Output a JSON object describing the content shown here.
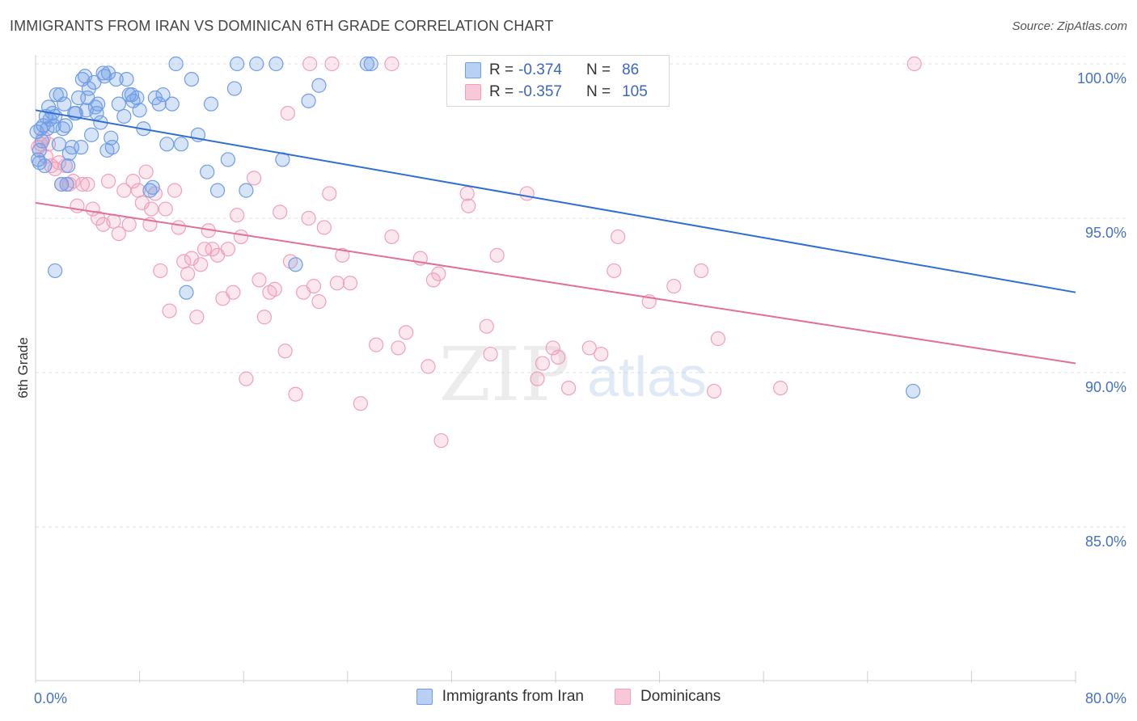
{
  "header": {
    "title": "IMMIGRANTS FROM IRAN VS DOMINICAN 6TH GRADE CORRELATION CHART",
    "source": "Source: ZipAtlas.com"
  },
  "legend": {
    "series": [
      {
        "r_label": "R =",
        "r_value": "-0.374",
        "n_label": "N =",
        "n_value": "86"
      },
      {
        "r_label": "R =",
        "r_value": "-0.357",
        "n_label": "N =",
        "n_value": "105"
      }
    ]
  },
  "watermark": {
    "part1": "ZIP",
    "part2": "atlas"
  },
  "chart_data": {
    "type": "scatter",
    "title": "IMMIGRANTS FROM IRAN VS DOMINICAN 6TH GRADE CORRELATION CHART",
    "xlabel": "",
    "ylabel": "6th Grade",
    "xlim": [
      0,
      80
    ],
    "ylim": [
      80.5,
      101
    ],
    "x_tick_labels": [
      "0.0%",
      "80.0%"
    ],
    "y_ticks": [
      {
        "value": 100,
        "label": "100.0%"
      },
      {
        "value": 95,
        "label": "95.0%"
      },
      {
        "value": 90,
        "label": "90.0%"
      },
      {
        "value": 85,
        "label": "85.0%"
      }
    ],
    "grid": true,
    "legend_position": "bottom-center",
    "colors": {
      "iran": "#6f9de6",
      "dominicans": "#f0a0bb",
      "iran_line": "#2f6fd1",
      "dominicans_line": "#e0709a"
    },
    "series": [
      {
        "name": "Immigrants from Iran",
        "color": "#6f9de6",
        "trend": {
          "x": [
            0,
            80
          ],
          "y": [
            98.5,
            92.6
          ]
        },
        "points": [
          [
            0.1,
            97.8
          ],
          [
            0.2,
            96.9
          ],
          [
            0.3,
            97.2
          ],
          [
            0.4,
            97.9
          ],
          [
            0.5,
            97.5
          ],
          [
            0.6,
            98.0
          ],
          [
            0.7,
            96.7
          ],
          [
            0.8,
            98.3
          ],
          [
            0.9,
            97.9
          ],
          [
            1.0,
            98.6
          ],
          [
            1.1,
            98.2
          ],
          [
            1.3,
            98.4
          ],
          [
            1.4,
            98.0
          ],
          [
            1.5,
            98.3
          ],
          [
            1.6,
            99.0
          ],
          [
            1.8,
            97.4
          ],
          [
            1.9,
            99.0
          ],
          [
            2.0,
            96.1
          ],
          [
            2.2,
            98.7
          ],
          [
            2.3,
            98.0
          ],
          [
            2.4,
            96.1
          ],
          [
            2.5,
            96.7
          ],
          [
            2.6,
            97.1
          ],
          [
            2.8,
            97.3
          ],
          [
            3.0,
            98.4
          ],
          [
            3.1,
            98.4
          ],
          [
            3.3,
            98.9
          ],
          [
            3.5,
            97.3
          ],
          [
            3.6,
            99.5
          ],
          [
            3.8,
            99.6
          ],
          [
            3.9,
            98.5
          ],
          [
            4.0,
            98.9
          ],
          [
            4.1,
            99.2
          ],
          [
            4.3,
            97.7
          ],
          [
            4.5,
            99.4
          ],
          [
            4.7,
            98.4
          ],
          [
            4.8,
            98.7
          ],
          [
            5.0,
            98.1
          ],
          [
            5.2,
            99.7
          ],
          [
            5.3,
            99.6
          ],
          [
            5.5,
            97.2
          ],
          [
            5.6,
            99.7
          ],
          [
            5.8,
            97.6
          ],
          [
            5.9,
            97.3
          ],
          [
            6.2,
            99.5
          ],
          [
            6.4,
            98.7
          ],
          [
            6.8,
            98.3
          ],
          [
            7.0,
            99.5
          ],
          [
            7.2,
            99.0
          ],
          [
            7.5,
            98.8
          ],
          [
            7.8,
            98.9
          ],
          [
            8.0,
            98.5
          ],
          [
            8.3,
            97.9
          ],
          [
            8.8,
            95.9
          ],
          [
            9.0,
            96.0
          ],
          [
            9.5,
            98.7
          ],
          [
            9.8,
            99.0
          ],
          [
            10.1,
            97.4
          ],
          [
            10.5,
            98.7
          ],
          [
            10.8,
            100.0
          ],
          [
            11.2,
            97.4
          ],
          [
            11.6,
            92.6
          ],
          [
            12.0,
            99.5
          ],
          [
            12.5,
            97.7
          ],
          [
            13.2,
            96.5
          ],
          [
            13.5,
            98.7
          ],
          [
            14.0,
            95.9
          ],
          [
            14.8,
            96.9
          ],
          [
            15.3,
            99.2
          ],
          [
            15.5,
            100.0
          ],
          [
            16.2,
            95.9
          ],
          [
            17.0,
            100.0
          ],
          [
            18.5,
            100.0
          ],
          [
            19.0,
            96.9
          ],
          [
            20.0,
            93.5
          ],
          [
            21.0,
            98.8
          ],
          [
            21.8,
            99.3
          ],
          [
            25.5,
            100.0
          ],
          [
            25.8,
            100.0
          ],
          [
            67.5,
            89.4
          ],
          [
            1.5,
            93.3
          ],
          [
            0.3,
            96.8
          ],
          [
            2.1,
            97.9
          ],
          [
            4.6,
            98.6
          ],
          [
            7.4,
            99.0
          ],
          [
            9.2,
            98.9
          ]
        ]
      },
      {
        "name": "Dominicans",
        "color": "#f0a0bb",
        "trend": {
          "x": [
            0,
            80
          ],
          "y": [
            95.5,
            90.3
          ]
        },
        "points": [
          [
            0.2,
            97.3
          ],
          [
            0.4,
            97.4
          ],
          [
            0.6,
            97.6
          ],
          [
            0.8,
            97.0
          ],
          [
            1.0,
            97.4
          ],
          [
            1.2,
            96.7
          ],
          [
            1.5,
            96.6
          ],
          [
            1.8,
            96.8
          ],
          [
            2.0,
            96.1
          ],
          [
            2.3,
            96.7
          ],
          [
            2.6,
            96.1
          ],
          [
            2.9,
            96.2
          ],
          [
            3.2,
            95.4
          ],
          [
            3.6,
            96.1
          ],
          [
            4.0,
            96.1
          ],
          [
            4.4,
            95.3
          ],
          [
            4.8,
            95.0
          ],
          [
            5.2,
            94.8
          ],
          [
            5.6,
            96.2
          ],
          [
            6.0,
            94.9
          ],
          [
            6.4,
            94.5
          ],
          [
            6.8,
            95.9
          ],
          [
            7.2,
            94.8
          ],
          [
            7.5,
            96.2
          ],
          [
            7.9,
            95.9
          ],
          [
            8.2,
            95.5
          ],
          [
            8.5,
            96.5
          ],
          [
            8.8,
            94.8
          ],
          [
            9.2,
            95.8
          ],
          [
            9.6,
            93.3
          ],
          [
            10.0,
            95.3
          ],
          [
            10.3,
            92.0
          ],
          [
            10.7,
            95.9
          ],
          [
            11.0,
            94.7
          ],
          [
            11.4,
            93.6
          ],
          [
            11.7,
            93.2
          ],
          [
            12.0,
            93.7
          ],
          [
            12.4,
            91.8
          ],
          [
            12.7,
            93.5
          ],
          [
            13.0,
            94.0
          ],
          [
            13.3,
            94.6
          ],
          [
            13.6,
            94.0
          ],
          [
            14.0,
            93.8
          ],
          [
            14.4,
            92.4
          ],
          [
            14.8,
            94.0
          ],
          [
            15.2,
            92.6
          ],
          [
            15.5,
            95.1
          ],
          [
            15.8,
            94.4
          ],
          [
            16.2,
            89.8
          ],
          [
            16.8,
            96.3
          ],
          [
            17.2,
            93.0
          ],
          [
            17.6,
            91.8
          ],
          [
            18.0,
            92.6
          ],
          [
            18.4,
            92.7
          ],
          [
            18.8,
            95.2
          ],
          [
            19.2,
            90.7
          ],
          [
            19.6,
            93.6
          ],
          [
            20.0,
            89.3
          ],
          [
            20.6,
            92.6
          ],
          [
            21.0,
            95.0
          ],
          [
            21.4,
            92.8
          ],
          [
            21.8,
            92.3
          ],
          [
            22.2,
            94.7
          ],
          [
            22.6,
            95.8
          ],
          [
            23.2,
            92.9
          ],
          [
            23.6,
            93.8
          ],
          [
            24.2,
            92.9
          ],
          [
            25.0,
            89.0
          ],
          [
            26.2,
            90.9
          ],
          [
            27.4,
            94.4
          ],
          [
            27.9,
            90.8
          ],
          [
            28.5,
            91.3
          ],
          [
            29.6,
            93.7
          ],
          [
            30.2,
            90.2
          ],
          [
            30.6,
            93.0
          ],
          [
            31.0,
            93.2
          ],
          [
            31.2,
            87.8
          ],
          [
            33.2,
            95.8
          ],
          [
            33.3,
            95.4
          ],
          [
            34.7,
            91.5
          ],
          [
            35.0,
            90.6
          ],
          [
            35.5,
            93.8
          ],
          [
            37.8,
            95.8
          ],
          [
            38.6,
            89.8
          ],
          [
            39.0,
            90.3
          ],
          [
            39.8,
            90.8
          ],
          [
            40.2,
            90.5
          ],
          [
            41.0,
            89.5
          ],
          [
            42.6,
            90.8
          ],
          [
            43.5,
            90.6
          ],
          [
            44.5,
            93.3
          ],
          [
            44.8,
            94.4
          ],
          [
            47.2,
            92.3
          ],
          [
            49.1,
            92.8
          ],
          [
            51.2,
            93.3
          ],
          [
            52.2,
            89.4
          ],
          [
            52.5,
            91.1
          ],
          [
            57.3,
            89.5
          ],
          [
            67.6,
            100.0
          ],
          [
            21.1,
            100.0
          ],
          [
            22.8,
            100.0
          ],
          [
            27.4,
            100.0
          ],
          [
            32.6,
            100.0
          ],
          [
            19.4,
            98.4
          ],
          [
            8.9,
            95.3
          ]
        ]
      }
    ]
  }
}
